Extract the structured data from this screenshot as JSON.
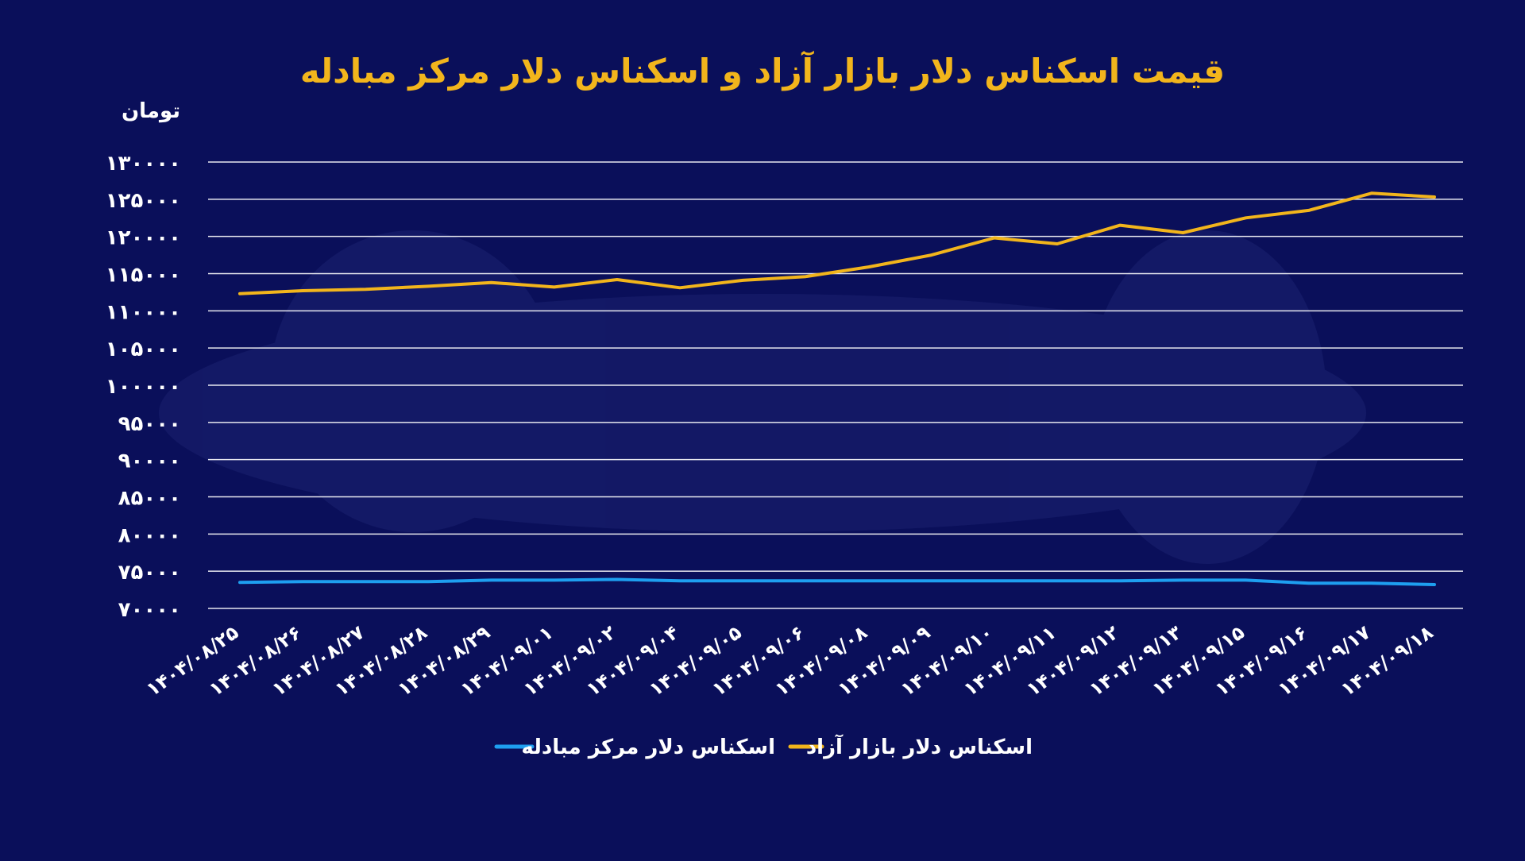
{
  "chart_data": {
    "type": "line",
    "title": "قیمت اسکناس دلار بازار آزاد و اسکناس دلار مرکز مبادله",
    "ylabel": "تومان",
    "xlabel": "",
    "ylim": [
      70000,
      130000
    ],
    "y_ticks": [
      {
        "value": 130000,
        "label": "۱۳۰۰۰۰"
      },
      {
        "value": 125000,
        "label": "۱۲۵۰۰۰"
      },
      {
        "value": 120000,
        "label": "۱۲۰۰۰۰"
      },
      {
        "value": 115000,
        "label": "۱۱۵۰۰۰"
      },
      {
        "value": 110000,
        "label": "۱۱۰۰۰۰"
      },
      {
        "value": 105000,
        "label": "۱۰۵۰۰۰"
      },
      {
        "value": 100000,
        "label": "۱۰۰۰۰۰"
      },
      {
        "value": 95000,
        "label": "۹۵۰۰۰"
      },
      {
        "value": 90000,
        "label": "۹۰۰۰۰"
      },
      {
        "value": 85000,
        "label": "۸۵۰۰۰"
      },
      {
        "value": 80000,
        "label": "۸۰۰۰۰"
      },
      {
        "value": 75000,
        "label": "۷۵۰۰۰"
      },
      {
        "value": 70000,
        "label": "۷۰۰۰۰"
      }
    ],
    "categories": [
      "۱۴۰۴/۰۸/۲۵",
      "۱۴۰۴/۰۸/۲۶",
      "۱۴۰۴/۰۸/۲۷",
      "۱۴۰۴/۰۸/۲۸",
      "۱۴۰۴/۰۸/۲۹",
      "۱۴۰۴/۰۹/۰۱",
      "۱۴۰۴/۰۹/۰۲",
      "۱۴۰۴/۰۹/۰۴",
      "۱۴۰۴/۰۹/۰۵",
      "۱۴۰۴/۰۹/۰۶",
      "۱۴۰۴/۰۹/۰۸",
      "۱۴۰۴/۰۹/۰۹",
      "۱۴۰۴/۰۹/۱۰",
      "۱۴۰۴/۰۹/۱۱",
      "۱۴۰۴/۰۹/۱۲",
      "۱۴۰۴/۰۹/۱۳",
      "۱۴۰۴/۰۹/۱۵",
      "۱۴۰۴/۰۹/۱۶",
      "۱۴۰۴/۰۹/۱۷",
      "۱۴۰۴/۰۹/۱۸"
    ],
    "series": [
      {
        "name": "اسکناس دلار بازار آزاد",
        "color": "#f2b51c",
        "values": [
          112300,
          112700,
          112900,
          113300,
          113800,
          113200,
          114200,
          113100,
          114100,
          114600,
          115900,
          117500,
          119800,
          119000,
          121500,
          120500,
          122500,
          123500,
          125800,
          125300
        ]
      },
      {
        "name": "اسکناس دلار مرکز مبادله",
        "color": "#1e9ff0",
        "values": [
          73500,
          73600,
          73600,
          73600,
          73800,
          73800,
          73900,
          73700,
          73700,
          73700,
          73700,
          73700,
          73700,
          73700,
          73700,
          73800,
          73800,
          73400,
          73400,
          73200
        ]
      }
    ],
    "grid": true,
    "legend_placement": "bottom-center"
  },
  "colors": {
    "background": "#0a0f5a",
    "title": "#f2b51c",
    "grid": "#ffffff",
    "text": "#ffffff"
  }
}
